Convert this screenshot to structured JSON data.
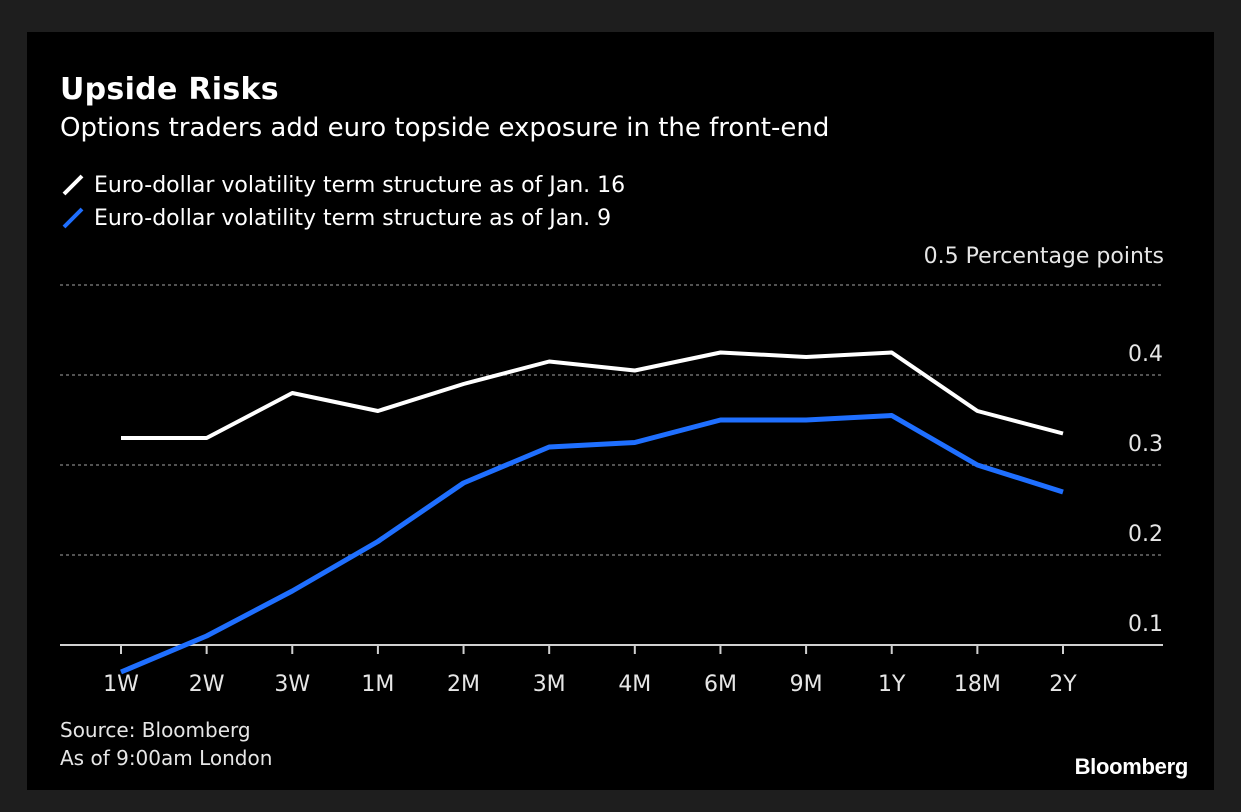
{
  "chart_data": {
    "type": "line",
    "title": "Upside Risks",
    "subtitle": "Options traders add euro topside exposure in the front-end",
    "categories": [
      "1W",
      "2W",
      "3W",
      "1M",
      "2M",
      "3M",
      "4M",
      "6M",
      "9M",
      "1Y",
      "18M",
      "2Y"
    ],
    "series": [
      {
        "name": "Euro-dollar volatility term structure as of Jan. 16",
        "color": "#ffffff",
        "values": [
          0.33,
          0.33,
          0.38,
          0.36,
          0.39,
          0.415,
          0.405,
          0.425,
          0.42,
          0.425,
          0.36,
          0.335
        ]
      },
      {
        "name": "Euro-dollar volatility term structure as of Jan. 9",
        "color": "#1f6fff",
        "values": [
          0.07,
          0.11,
          0.16,
          0.215,
          0.28,
          0.32,
          0.325,
          0.35,
          0.35,
          0.355,
          0.3,
          0.27
        ]
      }
    ],
    "ylim": [
      0.07,
      0.5
    ],
    "yticks": [
      0.1,
      0.2,
      0.3,
      0.4,
      0.5
    ],
    "ytick_labels": [
      "0.1",
      "0.2",
      "0.3",
      "0.4",
      "0.5"
    ],
    "unit_label": "Percentage points",
    "grid": true,
    "legend_position": "top-left"
  },
  "source_line_1": "Source: Bloomberg",
  "source_line_2": "As of 9:00am London",
  "brand": "Bloomberg"
}
